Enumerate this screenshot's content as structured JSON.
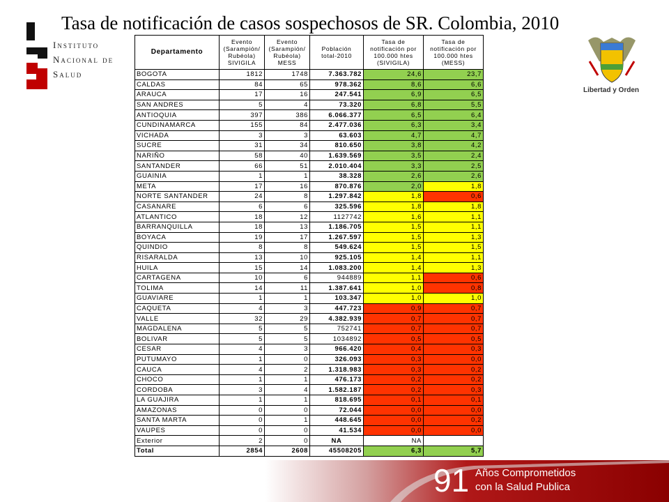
{
  "header": {
    "title": "Tasa de notificación de casos sospechosos de SR. Colombia, 2010",
    "logo_lines": [
      "Instituto",
      "Nacional de",
      "Salud"
    ],
    "emblem_motto": "Libertad y Orden"
  },
  "table": {
    "columns": [
      [
        "Departamento"
      ],
      [
        "Evento",
        "(Sarampión/",
        "Rubéola)",
        "SIVIGILA"
      ],
      [
        "Evento",
        "(Sarampión/",
        "Rubéola)",
        "MESS"
      ],
      [
        "Población",
        "total-2010"
      ],
      [
        "Tasa de",
        "notificación por",
        "100.000 htes",
        "(SIVIGILA)"
      ],
      [
        "Tasa de",
        "notificación por",
        "100.000 htes",
        "(MESS)"
      ]
    ],
    "rows": [
      {
        "cells": [
          "BOGOTA",
          "1812",
          "1748",
          "7.363.782",
          "24,6",
          "23,7"
        ],
        "colors": [
          "#92d050",
          "#92d050"
        ]
      },
      {
        "cells": [
          "CALDAS",
          "84",
          "65",
          "978.362",
          "8,6",
          "6,6"
        ],
        "colors": [
          "#92d050",
          "#92d050"
        ]
      },
      {
        "cells": [
          "ARAUCA",
          "17",
          "16",
          "247.541",
          "6,9",
          "6,5"
        ],
        "colors": [
          "#92d050",
          "#92d050"
        ]
      },
      {
        "cells": [
          "SAN ANDRES",
          "5",
          "4",
          "73.320",
          "6,8",
          "5,5"
        ],
        "colors": [
          "#92d050",
          "#92d050"
        ]
      },
      {
        "cells": [
          "ANTIOQUIA",
          "397",
          "386",
          "6.066.377",
          "6,5",
          "6,4"
        ],
        "colors": [
          "#92d050",
          "#92d050"
        ]
      },
      {
        "cells": [
          "CUNDINAMARCA",
          "155",
          "84",
          "2.477.036",
          "6,3",
          "3,4"
        ],
        "colors": [
          "#92d050",
          "#92d050"
        ]
      },
      {
        "cells": [
          "VICHADA",
          "3",
          "3",
          "63.603",
          "4,7",
          "4,7"
        ],
        "colors": [
          "#92d050",
          "#92d050"
        ]
      },
      {
        "cells": [
          "SUCRE",
          "31",
          "34",
          "810.650",
          "3,8",
          "4,2"
        ],
        "colors": [
          "#92d050",
          "#92d050"
        ]
      },
      {
        "cells": [
          "NARIÑO",
          "58",
          "40",
          "1.639.569",
          "3,5",
          "2,4"
        ],
        "colors": [
          "#92d050",
          "#92d050"
        ]
      },
      {
        "cells": [
          "SANTANDER",
          "66",
          "51",
          "2.010.404",
          "3,3",
          "2,5"
        ],
        "colors": [
          "#92d050",
          "#92d050"
        ]
      },
      {
        "cells": [
          "GUAINIA",
          "1",
          "1",
          "38.328",
          "2,6",
          "2,6"
        ],
        "colors": [
          "#92d050",
          "#92d050"
        ]
      },
      {
        "cells": [
          "META",
          "17",
          "16",
          "870.876",
          "2,0",
          "1,8"
        ],
        "colors": [
          "#92d050",
          "#ffff00"
        ]
      },
      {
        "cells": [
          "NORTE SANTANDER",
          "24",
          "8",
          "1.297.842",
          "1,8",
          "0,6"
        ],
        "colors": [
          "#ffff00",
          "#ff3300"
        ]
      },
      {
        "cells": [
          "CASANARE",
          "6",
          "6",
          "325.596",
          "1,8",
          "1,8"
        ],
        "colors": [
          "#ffff00",
          "#ffff00"
        ]
      },
      {
        "cells": [
          "ATLANTICO",
          "18",
          "12",
          "1127742",
          "1,6",
          "1,1"
        ],
        "colors": [
          "#ffff00",
          "#ffff00"
        ]
      },
      {
        "cells": [
          "BARRANQUILLA",
          "18",
          "13",
          "1.186.705",
          "1,5",
          "1,1"
        ],
        "colors": [
          "#ffff00",
          "#ffff00"
        ]
      },
      {
        "cells": [
          "BOYACA",
          "19",
          "17",
          "1.267.597",
          "1,5",
          "1,3"
        ],
        "colors": [
          "#ffff00",
          "#ffff00"
        ]
      },
      {
        "cells": [
          "QUINDIO",
          "8",
          "8",
          "549.624",
          "1,5",
          "1,5"
        ],
        "colors": [
          "#ffff00",
          "#ffff00"
        ]
      },
      {
        "cells": [
          "RISARALDA",
          "13",
          "10",
          "925.105",
          "1,4",
          "1,1"
        ],
        "colors": [
          "#ffff00",
          "#ffff00"
        ]
      },
      {
        "cells": [
          "HUILA",
          "15",
          "14",
          "1.083.200",
          "1,4",
          "1,3"
        ],
        "colors": [
          "#ffff00",
          "#ffff00"
        ]
      },
      {
        "cells": [
          "CARTAGENA",
          "10",
          "6",
          "944889",
          "1,1",
          "0,6"
        ],
        "colors": [
          "#ffff00",
          "#ff3300"
        ]
      },
      {
        "cells": [
          "TOLIMA",
          "14",
          "11",
          "1.387.641",
          "1,0",
          "0,8"
        ],
        "colors": [
          "#ffff00",
          "#ff3300"
        ]
      },
      {
        "cells": [
          "GUAVIARE",
          "1",
          "1",
          "103.347",
          "1,0",
          "1,0"
        ],
        "colors": [
          "#ffff00",
          "#ffff00"
        ]
      },
      {
        "cells": [
          "CAQUETA",
          "4",
          "3",
          "447.723",
          "0,9",
          "0,7"
        ],
        "colors": [
          "#ff3300",
          "#ff3300"
        ]
      },
      {
        "cells": [
          "VALLE",
          "32",
          "29",
          "4.382.939",
          "0,7",
          "0,7"
        ],
        "colors": [
          "#ff3300",
          "#ff3300"
        ]
      },
      {
        "cells": [
          "MAGDALENA",
          "5",
          "5",
          "752741",
          "0,7",
          "0,7"
        ],
        "colors": [
          "#ff3300",
          "#ff3300"
        ]
      },
      {
        "cells": [
          "BOLIVAR",
          "5",
          "5",
          "1034892",
          "0,5",
          "0,5"
        ],
        "colors": [
          "#ff3300",
          "#ff3300"
        ]
      },
      {
        "cells": [
          "CESAR",
          "4",
          "3",
          "966.420",
          "0,4",
          "0,3"
        ],
        "colors": [
          "#ff3300",
          "#ff3300"
        ]
      },
      {
        "cells": [
          "PUTUMAYO",
          "1",
          "0",
          "326.093",
          "0,3",
          "0,0"
        ],
        "colors": [
          "#ff3300",
          "#ff3300"
        ]
      },
      {
        "cells": [
          "CAUCA",
          "4",
          "2",
          "1.318.983",
          "0,3",
          "0,2"
        ],
        "colors": [
          "#ff3300",
          "#ff3300"
        ]
      },
      {
        "cells": [
          "CHOCO",
          "1",
          "1",
          "476.173",
          "0,2",
          "0,2"
        ],
        "colors": [
          "#ff3300",
          "#ff3300"
        ]
      },
      {
        "cells": [
          "CORDOBA",
          "3",
          "4",
          "1.582.187",
          "0,2",
          "0,3"
        ],
        "colors": [
          "#ff3300",
          "#ff3300"
        ]
      },
      {
        "cells": [
          "LA GUAJIRA",
          "1",
          "1",
          "818.695",
          "0,1",
          "0,1"
        ],
        "colors": [
          "#ff3300",
          "#ff3300"
        ]
      },
      {
        "cells": [
          "AMAZONAS",
          "0",
          "0",
          "72.044",
          "0,0",
          "0,0"
        ],
        "colors": [
          "#ff3300",
          "#ff3300"
        ]
      },
      {
        "cells": [
          "SANTA MARTA",
          "0",
          "1",
          "448.645",
          "0,0",
          "0,2"
        ],
        "colors": [
          "#ff3300",
          "#ff3300"
        ]
      },
      {
        "cells": [
          "VAUPES",
          "0",
          "0",
          "41.534",
          "0,0",
          "0,0"
        ],
        "colors": [
          "#ff3300",
          "#ff3300"
        ]
      },
      {
        "cells": [
          "Exterior",
          "2",
          "0",
          "NA",
          "NA"
        ],
        "colors": [
          "#ffffff",
          "#ffffff"
        ]
      },
      {
        "cells": [
          "Total",
          "2854",
          "2608",
          "45508205",
          "6,3",
          "5,7"
        ],
        "colors": [
          "#92d050",
          "#92d050"
        ]
      }
    ]
  },
  "footer": {
    "number": "91",
    "lines": [
      "Años Comprometidos",
      "con la Salud Publica"
    ]
  }
}
